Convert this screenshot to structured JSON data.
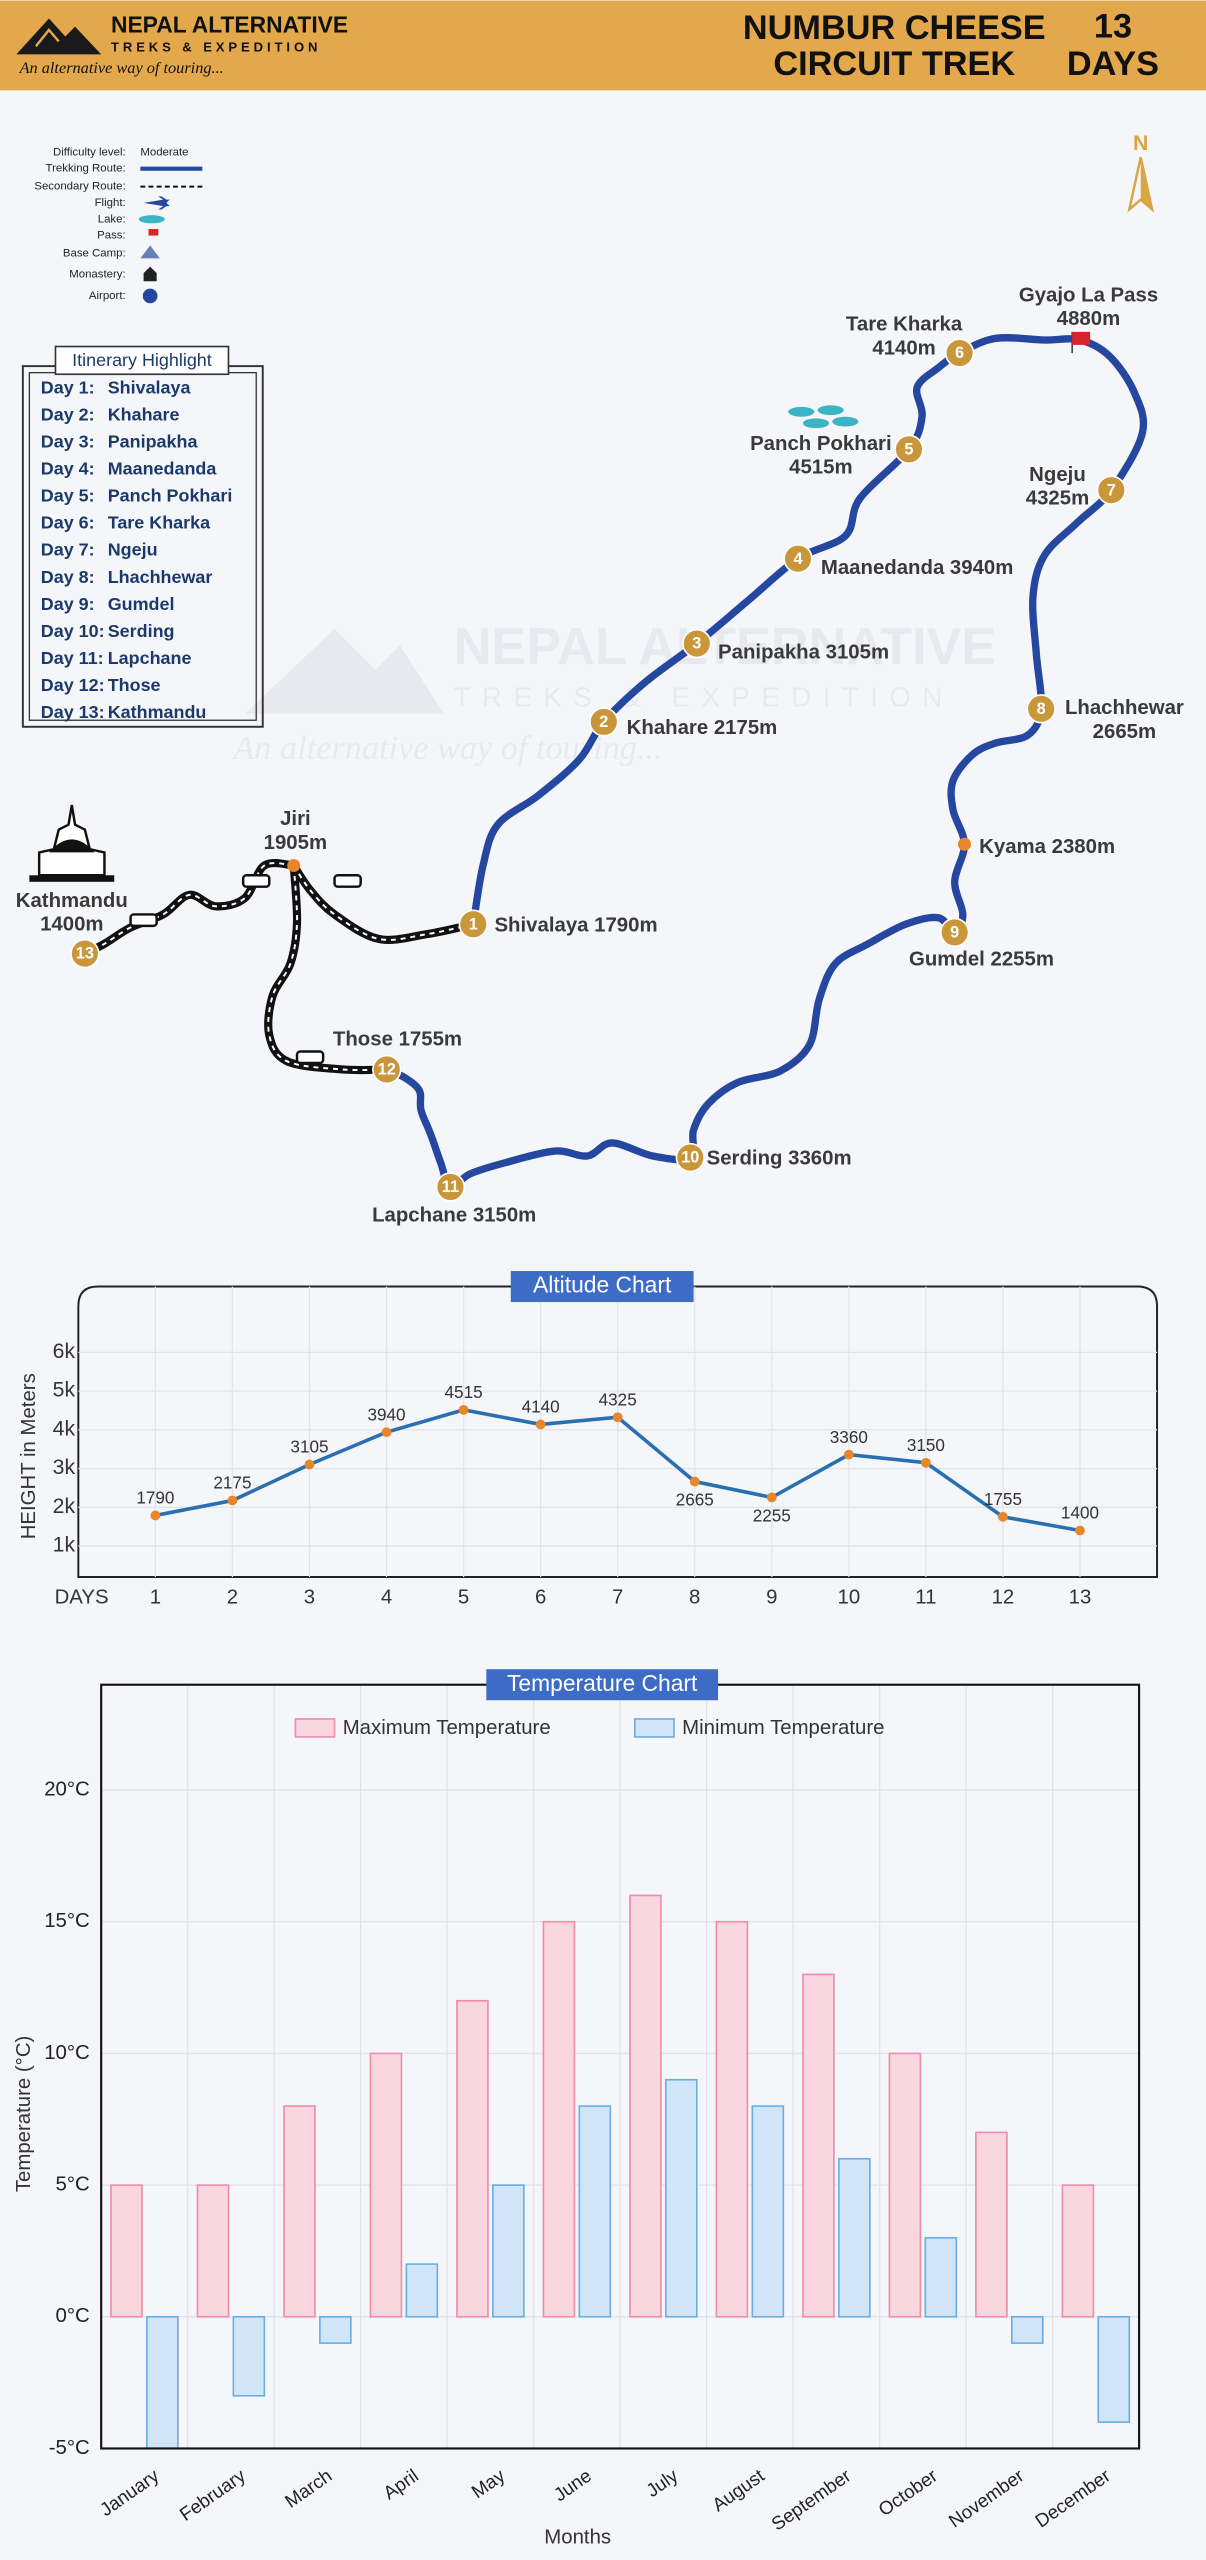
{
  "header": {
    "brand": "NEPAL ALTERNATIVE",
    "brand_sub": "TREKS & EXPEDITION",
    "tagline": "An alternative way of touring...",
    "title_lines": [
      "NUMBUR CHEESE",
      "CIRCUIT TREK"
    ],
    "duration_lines": [
      "13",
      "DAYS"
    ]
  },
  "compass": "N",
  "map_legend": [
    {
      "label": "Difficulty level:",
      "value": "Moderate"
    },
    {
      "label": "Trekking Route:"
    },
    {
      "label": "Secondary Route:"
    },
    {
      "label": "Flight:"
    },
    {
      "label": "Lake:"
    },
    {
      "label": "Pass:"
    },
    {
      "label": "Base Camp:"
    },
    {
      "label": "Monastery:"
    },
    {
      "label": "Airport:"
    }
  ],
  "itinerary": {
    "title": "Itinerary Highlight",
    "rows": [
      [
        "Day 1:",
        "Shivalaya"
      ],
      [
        "Day 2:",
        "Khahare"
      ],
      [
        "Day 3:",
        "Panipakha"
      ],
      [
        "Day 4:",
        "Maanedanda"
      ],
      [
        "Day 5:",
        "Panch Pokhari"
      ],
      [
        "Day 6:",
        "Tare Kharka"
      ],
      [
        "Day 7:",
        "Ngeju"
      ],
      [
        "Day 8:",
        "Lhachhewar"
      ],
      [
        "Day 9:",
        "Gumdel"
      ],
      [
        "Day 10:",
        "Serding"
      ],
      [
        "Day 11:",
        "Lapchane"
      ],
      [
        "Day 12:",
        "Those"
      ],
      [
        "Day 13:",
        "Kathmandu"
      ]
    ]
  },
  "stops": [
    {
      "number": "1",
      "lines": [
        "Shivalaya 1790m"
      ]
    },
    {
      "number": "2",
      "lines": [
        "Khahare 2175m"
      ]
    },
    {
      "number": "3",
      "lines": [
        "Panipakha 3105m"
      ]
    },
    {
      "number": "4",
      "lines": [
        "Maanedanda 3940m"
      ]
    },
    {
      "number": "5",
      "lines": [
        "Panch Pokhari",
        "4515m"
      ]
    },
    {
      "number": "6",
      "lines": [
        "Tare Kharka",
        "4140m"
      ]
    },
    {
      "number": "7",
      "lines": [
        "Ngeju",
        "4325m"
      ]
    },
    {
      "number": "8",
      "lines": [
        "Lhachhewar",
        "2665m"
      ]
    },
    {
      "number": "9",
      "lines": [
        "Gumdel 2255m"
      ]
    },
    {
      "number": "10",
      "lines": [
        "Serding 3360m"
      ]
    },
    {
      "number": "11",
      "lines": [
        "Lapchane 3150m"
      ]
    },
    {
      "number": "12",
      "lines": [
        "Those 1755m"
      ]
    },
    {
      "number": "13",
      "lines": [
        "Kathmandu",
        "1400m"
      ]
    }
  ],
  "places": [
    {
      "lines": [
        "Jiri",
        "1905m"
      ]
    },
    {
      "lines": [
        "Kyama 2380m"
      ]
    },
    {
      "lines": [
        "Gyajo La Pass",
        "4880m"
      ]
    }
  ],
  "chart_data": [
    {
      "type": "line",
      "title": "Altitude Chart",
      "ylabel": "HEIGHT in Meters",
      "xlabel": "DAYS",
      "x": [
        1,
        2,
        3,
        4,
        5,
        6,
        7,
        8,
        9,
        10,
        11,
        12,
        13
      ],
      "values": [
        1790,
        2175,
        3105,
        3940,
        4515,
        4140,
        4325,
        2665,
        2255,
        3360,
        3150,
        1755,
        1400
      ],
      "xlim": [
        0,
        14
      ],
      "xticks": [
        1,
        2,
        3,
        4,
        5,
        6,
        7,
        8,
        9,
        10,
        11,
        12,
        13
      ],
      "ylim": [
        200,
        7700
      ],
      "yticks": [
        {
          "value": 1000,
          "label": "1k"
        },
        {
          "value": 2000,
          "label": "2k"
        },
        {
          "value": 3000,
          "label": "3k"
        },
        {
          "value": 4000,
          "label": "4k"
        },
        {
          "value": 5000,
          "label": "5k"
        },
        {
          "value": 6000,
          "label": "6k"
        }
      ],
      "color": "#2a6fb0",
      "marker_color": "#e8862a",
      "grid": true
    },
    {
      "type": "bar",
      "title": "Temperature Chart",
      "ylabel": "Temperature (°C)",
      "xlabel": "Months",
      "categories": [
        "January",
        "February",
        "March",
        "April",
        "May",
        "June",
        "July",
        "August",
        "September",
        "October",
        "November",
        "December"
      ],
      "series": [
        {
          "name": "Maximum Temperature",
          "color": "#fad6e0",
          "edge_color": "#ec8ea8",
          "values": [
            5,
            5,
            8,
            10,
            12,
            15,
            16,
            15,
            13,
            10,
            7,
            5
          ]
        },
        {
          "name": "Minimum Temperature",
          "color": "#d0e5f7",
          "edge_color": "#6caee2",
          "values": [
            -5,
            -3,
            -1,
            2,
            5,
            8,
            9,
            8,
            6,
            3,
            -1,
            -4
          ]
        }
      ],
      "ylim": [
        -5,
        24
      ],
      "yticks": [
        {
          "value": -5,
          "label": "-5°C"
        },
        {
          "value": 0,
          "label": "0°C"
        },
        {
          "value": 5,
          "label": "5°C"
        },
        {
          "value": 10,
          "label": "10°C"
        },
        {
          "value": 15,
          "label": "15°C"
        },
        {
          "value": 20,
          "label": "20°C"
        }
      ],
      "grid": true
    }
  ]
}
